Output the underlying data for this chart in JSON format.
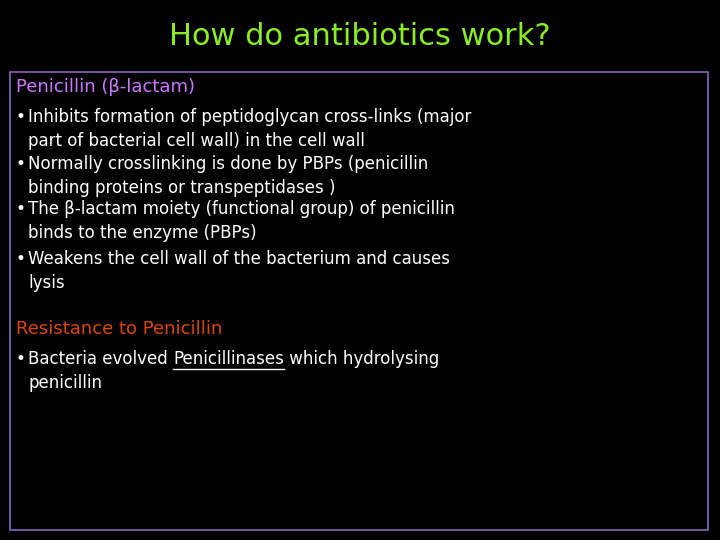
{
  "title": "How do antibiotics work?",
  "title_color": "#88ee22",
  "background_color": "#000000",
  "box_edge_color": "#8866bb",
  "section1_heading": "Penicillin (β-lactam)",
  "section1_heading_color": "#cc77ff",
  "section1_bullets": [
    "Inhibits formation of peptidoglycan cross-links (major\npart of bacterial cell wall) in the cell wall",
    "Normally crosslinking is done by PBPs (penicillin\nbinding proteins or transpeptidases )",
    "The β-lactam moiety (functional group) of penicillin\nbinds to the enzyme (PBPs)",
    "Weakens the cell wall of the bacterium and causes\nlysis"
  ],
  "section2_heading": "Resistance to Penicillin",
  "section2_heading_color": "#dd4400",
  "section2_bullet_pre": "Bacteria evolved ",
  "section2_bullet_underline": "Penicillinases",
  "section2_bullet_post": " which hydrolysing",
  "section2_bullet_line2": "penicillin",
  "bullet_color": "#ffffff",
  "font_size_title": 22,
  "font_size_heading": 13,
  "font_size_bullet": 12,
  "figwidth": 7.2,
  "figheight": 5.4,
  "dpi": 100
}
